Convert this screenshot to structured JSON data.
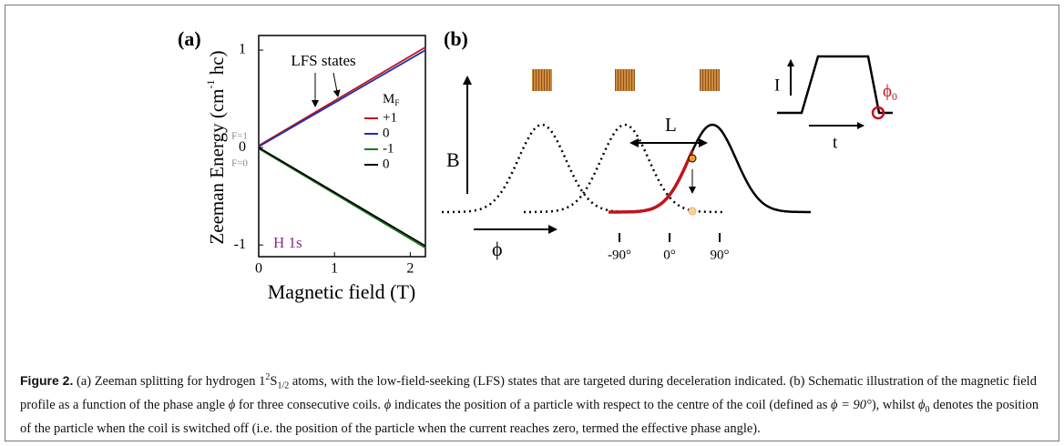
{
  "chart_data": {
    "type": "line",
    "panel_label": "(a)",
    "xlabel": "Magnetic field (T)",
    "ylabel": {
      "main": "Zeeman Energy (cm",
      "sup": "-1",
      "end": " hc)"
    },
    "x": [
      0,
      1.1,
      2.2
    ],
    "series": [
      {
        "name": "+1",
        "color": "#c0141c",
        "values": [
          0.02,
          0.525,
          1.03
        ]
      },
      {
        "name": "0",
        "color": "#1f2fb0",
        "values": [
          0.01,
          0.505,
          1.0
        ]
      },
      {
        "name": "-1",
        "color": "#1a7a1a",
        "values": [
          -0.01,
          -0.52,
          -1.03
        ]
      },
      {
        "name": "0",
        "color": "#000000",
        "values": [
          0.0,
          -0.505,
          -1.01
        ]
      }
    ],
    "legend_title": {
      "main": "M",
      "sub": "F"
    },
    "xlim": [
      0,
      2.2
    ],
    "ylim": [
      -1.12,
      1.15
    ],
    "xticks": [
      0,
      1,
      2
    ],
    "yticks": [
      1,
      0,
      -1
    ],
    "annotations": {
      "lfs": "LFS states",
      "f1": "F=1",
      "f0": "F=0",
      "atom": "H 1s"
    }
  },
  "panel_b": {
    "label": "(b)",
    "b_axis": "B",
    "phi_axis": "ϕ",
    "spacing": "L",
    "phase_ticks": [
      "-90°",
      "0°",
      "90°"
    ],
    "inset": {
      "current": "I",
      "time": "t",
      "phi0": {
        "main": "ϕ",
        "sub": "0"
      }
    }
  },
  "caption": {
    "label": "Figure 2.",
    "parts": [
      " (a) Zeeman splitting for hydrogen 1",
      "2",
      "S",
      "1/2",
      " atoms, with the low-field-seeking (LFS) states that are targeted during deceleration indicated. (b) Schematic illustration of the magnetic field profile as a function of the phase angle ",
      "ϕ",
      " for three consecutive coils. ",
      "ϕ",
      " indicates the position of a particle with respect to the centre of the coil (defined as ",
      "ϕ = 90°",
      "), whilst ",
      "ϕ",
      "0",
      " denotes the position of the particle when the coil is switched off (i.e. the position of the particle when the current reaches zero, termed the effective phase angle)."
    ]
  }
}
